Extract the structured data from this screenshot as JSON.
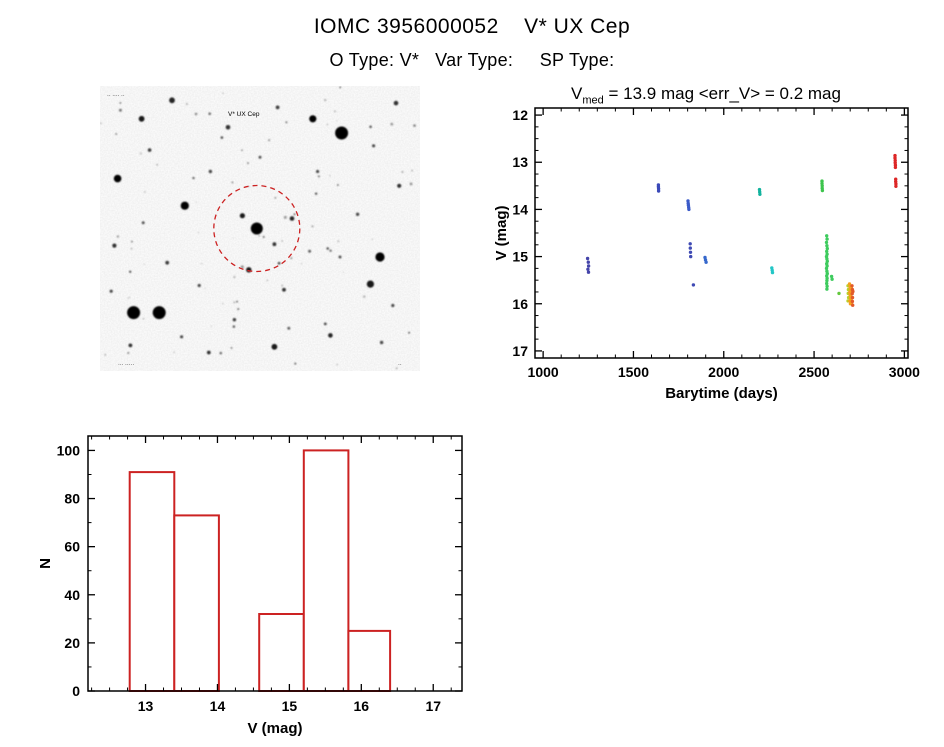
{
  "header": {
    "title": "IOMC 3956000052    V* UX Cep",
    "subtitle": "O Type: V*   Var Type:     SP Type:"
  },
  "lightcurve_title": {
    "base": "V",
    "sub": "med",
    "rest": " = 13.9 mag <err_V> = 0.2 mag"
  },
  "finder": {
    "target_label": "V* UX Cep",
    "top_left_note": "·· ···· ··",
    "bottom_note": "··· ·····",
    "bottom_right_note": "··",
    "circle_color": "#cc2222",
    "stars": [
      [
        0.49,
        0.5,
        6,
        1
      ],
      [
        0.445,
        0.455,
        2.6,
        0.9
      ],
      [
        0.545,
        0.555,
        1.9,
        0.8
      ],
      [
        0.105,
        0.795,
        6.5,
        1
      ],
      [
        0.185,
        0.795,
        6.5,
        1
      ],
      [
        0.755,
        0.165,
        6.5,
        1
      ],
      [
        0.665,
        0.115,
        3.6,
        1
      ],
      [
        0.875,
        0.6,
        4.6,
        1
      ],
      [
        0.845,
        0.695,
        3.6,
        0.9
      ],
      [
        0.055,
        0.325,
        3.8,
        1
      ],
      [
        0.265,
        0.42,
        4.1,
        1
      ],
      [
        0.13,
        0.115,
        2.9,
        0.9
      ],
      [
        0.225,
        0.05,
        2.9,
        0.85
      ],
      [
        0.4,
        0.145,
        2.3,
        0.8
      ],
      [
        0.555,
        0.075,
        1.9,
        0.75
      ],
      [
        0.925,
        0.06,
        2.3,
        0.8
      ],
      [
        0.545,
        0.915,
        2.9,
        0.9
      ],
      [
        0.72,
        0.875,
        2.3,
        0.85
      ],
      [
        0.34,
        0.935,
        1.9,
        0.8
      ],
      [
        0.6,
        0.465,
        2.3,
        0.85
      ],
      [
        0.465,
        0.645,
        2.7,
        0.9
      ],
      [
        0.575,
        0.715,
        1.9,
        0.8
      ],
      [
        0.045,
        0.56,
        2.1,
        0.8
      ],
      [
        0.935,
        0.35,
        2.1,
        0.8
      ],
      [
        0.805,
        0.45,
        1.7,
        0.7
      ],
      [
        0.345,
        0.3,
        1.7,
        0.7
      ],
      [
        0.21,
        0.62,
        1.9,
        0.75
      ],
      [
        0.095,
        0.91,
        1.9,
        0.8
      ],
      [
        0.88,
        0.9,
        1.7,
        0.7
      ],
      [
        0.31,
        0.7,
        1.6,
        0.7
      ],
      [
        0.155,
        0.225,
        1.8,
        0.75
      ],
      [
        0.68,
        0.3,
        1.6,
        0.7
      ],
      [
        0.75,
        0.6,
        1.5,
        0.65
      ],
      [
        0.42,
        0.82,
        1.7,
        0.75
      ],
      [
        0.255,
        0.88,
        1.6,
        0.7
      ],
      [
        0.655,
        0.58,
        1.5,
        0.6
      ],
      [
        0.5,
        0.25,
        1.5,
        0.65
      ],
      [
        0.855,
        0.21,
        1.6,
        0.7
      ],
      [
        0.035,
        0.72,
        1.6,
        0.7
      ],
      [
        0.59,
        0.85,
        1.5,
        0.6
      ],
      [
        0.135,
        0.48,
        1.5,
        0.65
      ],
      [
        0.915,
        0.77,
        1.6,
        0.7
      ]
    ]
  },
  "chart_data": [
    {
      "type": "scatter",
      "title": "V_med = 13.9 mag <err_V> = 0.2 mag",
      "xlabel": "Barytime (days)",
      "ylabel": "V (mag)",
      "xlim": [
        955,
        3020
      ],
      "ylim": [
        11.85,
        17.15
      ],
      "y_inverted": true,
      "xticks": [
        1000,
        1500,
        2000,
        2500,
        3000
      ],
      "yticks": [
        12,
        13,
        14,
        15,
        16,
        17
      ],
      "x_major": 500,
      "x_minor": 100,
      "y_minor": 0.25,
      "series": [
        {
          "name": "e1",
          "color": "#4444aa",
          "points": [
            [
              1246,
              15.04
            ],
            [
              1250,
              15.12
            ],
            [
              1252,
              15.2
            ],
            [
              1248,
              15.27
            ],
            [
              1251,
              15.33
            ]
          ]
        },
        {
          "name": "e2",
          "color": "#3a49b8",
          "points": [
            [
              1638,
              13.48
            ],
            [
              1638,
              13.52
            ],
            [
              1639,
              13.56
            ],
            [
              1639,
              13.61
            ]
          ]
        },
        {
          "name": "e3",
          "color": "#3a5ac8",
          "points": [
            [
              1802,
              13.82
            ],
            [
              1803,
              13.87
            ],
            [
              1804,
              13.91
            ],
            [
              1806,
              13.96
            ],
            [
              1807,
              14.0
            ]
          ]
        },
        {
          "name": "e4",
          "color": "#3f4ab4",
          "points": [
            [
              1814,
              14.73
            ],
            [
              1815,
              14.82
            ],
            [
              1816,
              14.91
            ],
            [
              1817,
              15.0
            ]
          ]
        },
        {
          "name": "e5",
          "color": "#3f4ab4",
          "points": [
            [
              1832,
              15.6
            ]
          ]
        },
        {
          "name": "e6",
          "color": "#3668cc",
          "points": [
            [
              1896,
              15.02
            ],
            [
              1899,
              15.07
            ],
            [
              1902,
              15.12
            ]
          ]
        },
        {
          "name": "e7",
          "color": "#12b39e",
          "points": [
            [
              2198,
              13.58
            ],
            [
              2199,
              13.63
            ],
            [
              2200,
              13.68
            ]
          ]
        },
        {
          "name": "e8",
          "color": "#22c6c6",
          "points": [
            [
              2266,
              15.24
            ],
            [
              2268,
              15.29
            ],
            [
              2270,
              15.34
            ]
          ]
        },
        {
          "name": "e9",
          "color": "#3dc44d",
          "points": [
            [
              2544,
              13.4
            ],
            [
              2544,
              13.45
            ],
            [
              2545,
              13.5
            ],
            [
              2545,
              13.55
            ],
            [
              2546,
              13.6
            ]
          ]
        },
        {
          "name": "e10",
          "color": "#3ecb5e",
          "points": [
            [
              2570,
              14.56
            ],
            [
              2572,
              14.63
            ],
            [
              2569,
              14.7
            ],
            [
              2571,
              14.77
            ],
            [
              2573,
              14.83
            ],
            [
              2570,
              14.89
            ],
            [
              2572,
              14.95
            ],
            [
              2569,
              15.0
            ],
            [
              2571,
              15.05
            ],
            [
              2573,
              15.1
            ],
            [
              2570,
              15.15
            ],
            [
              2572,
              15.2
            ],
            [
              2569,
              15.25
            ],
            [
              2571,
              15.31
            ],
            [
              2573,
              15.36
            ],
            [
              2570,
              15.41
            ],
            [
              2572,
              15.46
            ],
            [
              2571,
              15.51
            ],
            [
              2570,
              15.57
            ],
            [
              2572,
              15.63
            ],
            [
              2571,
              15.69
            ]
          ]
        },
        {
          "name": "e11",
          "color": "#3ecb5e",
          "points": [
            [
              2597,
              15.42
            ],
            [
              2600,
              15.48
            ]
          ]
        },
        {
          "name": "e12",
          "color": "#63c83e",
          "points": [
            [
              2638,
              15.78
            ]
          ]
        },
        {
          "name": "e13",
          "color": "#b9cf2a",
          "points": [
            [
              2688,
              15.62
            ],
            [
              2690,
              15.7
            ],
            [
              2689,
              15.78
            ],
            [
              2691,
              15.87
            ],
            [
              2688,
              15.94
            ]
          ]
        },
        {
          "name": "e14",
          "color": "#f5a01e",
          "points": [
            [
              2696,
              15.58
            ],
            [
              2699,
              15.64
            ],
            [
              2702,
              15.7
            ],
            [
              2697,
              15.76
            ],
            [
              2700,
              15.82
            ],
            [
              2703,
              15.88
            ],
            [
              2698,
              15.94
            ],
            [
              2701,
              16.0
            ],
            [
              2704,
              15.73
            ],
            [
              2703,
              15.81
            ],
            [
              2706,
              15.66
            ],
            [
              2705,
              15.91
            ],
            [
              2707,
              15.98
            ]
          ]
        },
        {
          "name": "e15",
          "color": "#e25a2a",
          "points": [
            [
              2710,
              15.62
            ],
            [
              2712,
              15.7
            ],
            [
              2711,
              15.79
            ],
            [
              2713,
              15.87
            ],
            [
              2712,
              15.95
            ],
            [
              2714,
              16.03
            ],
            [
              2715,
              15.74
            ]
          ]
        },
        {
          "name": "e16",
          "color": "#dd2626",
          "points": [
            [
              2948,
              12.86
            ],
            [
              2948,
              12.91
            ],
            [
              2949,
              12.96
            ],
            [
              2949,
              13.01
            ],
            [
              2950,
              13.06
            ],
            [
              2950,
              13.11
            ],
            [
              2952,
              13.36
            ],
            [
              2952,
              13.41
            ],
            [
              2953,
              13.46
            ],
            [
              2953,
              13.51
            ]
          ]
        }
      ]
    },
    {
      "type": "bar",
      "title": "",
      "xlabel": "V (mag)",
      "ylabel": "N",
      "xlim": [
        12.2,
        17.4
      ],
      "ylim": [
        0,
        106
      ],
      "xticks": [
        13,
        14,
        15,
        16,
        17
      ],
      "yticks": [
        0,
        20,
        40,
        60,
        80,
        100
      ],
      "x_minor": 0.25,
      "y_minor": 10,
      "bar_color": "#cc2222",
      "bins": [
        {
          "x0": 12.78,
          "x1": 13.4,
          "count": 91
        },
        {
          "x0": 13.4,
          "x1": 14.02,
          "count": 73
        },
        {
          "x0": 14.58,
          "x1": 15.2,
          "count": 32
        },
        {
          "x0": 15.2,
          "x1": 15.82,
          "count": 100
        },
        {
          "x0": 15.82,
          "x1": 16.4,
          "count": 25
        }
      ]
    }
  ]
}
